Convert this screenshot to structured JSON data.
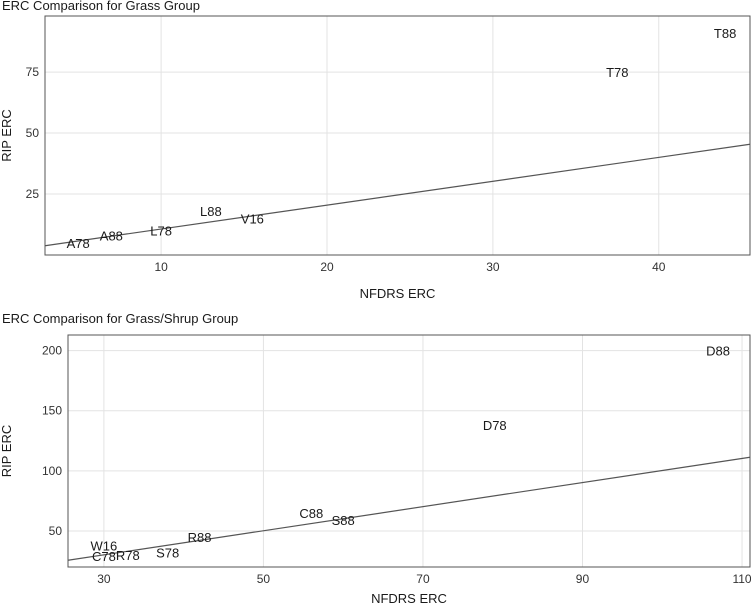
{
  "chart_data": [
    {
      "type": "scatter",
      "title": "ERC Comparison for Grass Group",
      "xlabel": "NFDRS ERC",
      "ylabel": "RIP ERC",
      "xlim": [
        3,
        45.5
      ],
      "ylim": [
        0,
        98
      ],
      "xticks": [
        10,
        20,
        30,
        40
      ],
      "yticks": [
        25,
        50,
        75
      ],
      "grid": true,
      "reference_line": {
        "x": [
          3,
          45.5
        ],
        "y": [
          3.8,
          45.4
        ]
      },
      "points": [
        {
          "label": "A78",
          "x": 5.0,
          "y": 5.0
        },
        {
          "label": "A88",
          "x": 7.0,
          "y": 8.0
        },
        {
          "label": "L78",
          "x": 10.0,
          "y": 10.0
        },
        {
          "label": "L88",
          "x": 13.0,
          "y": 18.0
        },
        {
          "label": "V16",
          "x": 15.5,
          "y": 15.0
        },
        {
          "label": "T78",
          "x": 37.5,
          "y": 75.0
        },
        {
          "label": "T88",
          "x": 44.0,
          "y": 91.0
        }
      ]
    },
    {
      "type": "scatter",
      "title": "ERC Comparison for Grass/Shrup Group",
      "xlabel": "NFDRS ERC",
      "ylabel": "RIP ERC",
      "xlim": [
        25.5,
        111
      ],
      "ylim": [
        20,
        213
      ],
      "xticks": [
        30,
        50,
        70,
        90,
        110
      ],
      "yticks": [
        50,
        100,
        150,
        200
      ],
      "grid": true,
      "reference_line": {
        "x": [
          25.5,
          111
        ],
        "y": [
          25.6,
          111.3
        ]
      },
      "points": [
        {
          "label": "W16",
          "x": 30.0,
          "y": 38.0
        },
        {
          "label": "C78",
          "x": 30.0,
          "y": 29.0
        },
        {
          "label": "R78",
          "x": 33.0,
          "y": 30.0
        },
        {
          "label": "S78",
          "x": 38.0,
          "y": 32.0
        },
        {
          "label": "R88",
          "x": 42.0,
          "y": 45.0
        },
        {
          "label": "C88",
          "x": 56.0,
          "y": 65.0
        },
        {
          "label": "S88",
          "x": 60.0,
          "y": 59.0
        },
        {
          "label": "D78",
          "x": 79.0,
          "y": 138.0
        },
        {
          "label": "D88",
          "x": 107.0,
          "y": 200.0
        }
      ]
    }
  ]
}
